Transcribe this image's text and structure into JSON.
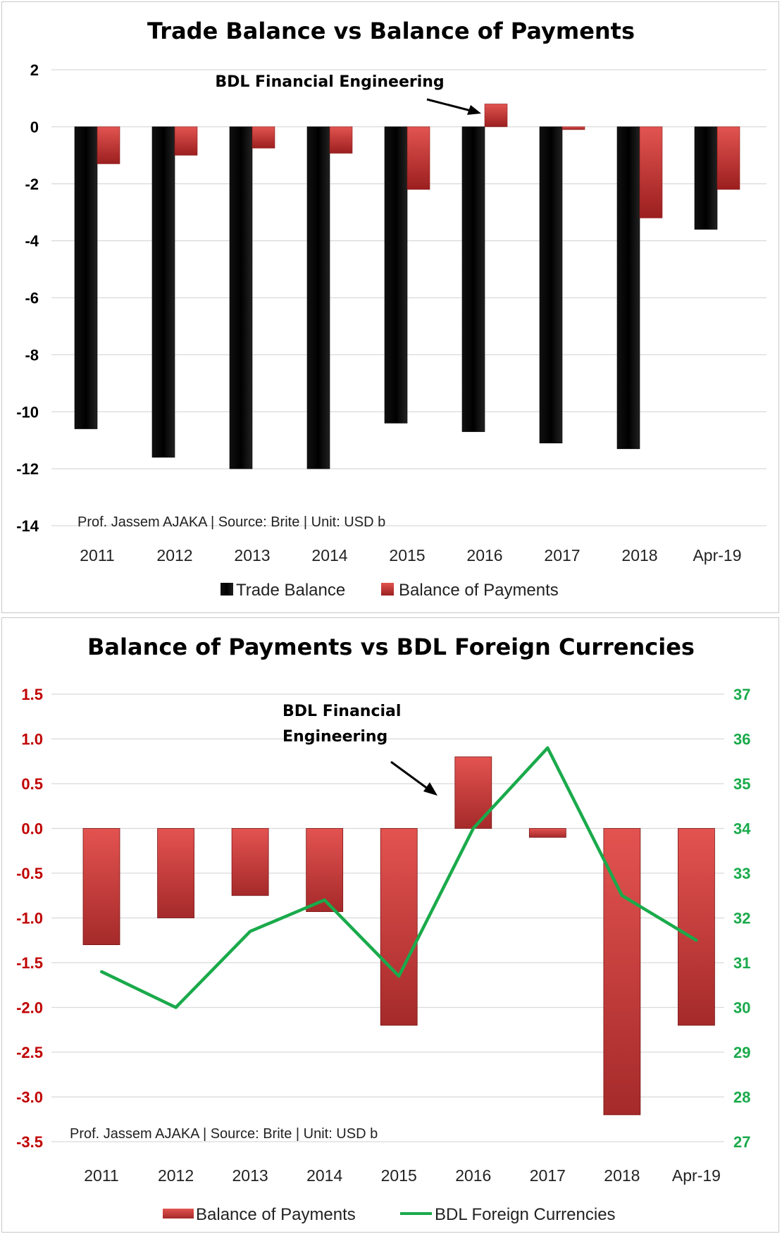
{
  "chart_data": [
    {
      "type": "bar",
      "title": "Trade Balance vs Balance of Payments",
      "categories": [
        "2011",
        "2012",
        "2013",
        "2014",
        "2015",
        "2016",
        "2017",
        "2018",
        "Apr-19"
      ],
      "series": [
        {
          "name": "Trade Balance",
          "color": "#000000",
          "values": [
            -10.6,
            -11.6,
            -12.0,
            -12.0,
            -10.4,
            -10.7,
            -11.1,
            -11.3,
            -3.6
          ]
        },
        {
          "name": "Balance of Payments",
          "color": "#c0392b",
          "values": [
            -1.3,
            -1.0,
            -0.75,
            -0.93,
            -2.2,
            0.8,
            -0.1,
            -3.2,
            -2.2
          ]
        }
      ],
      "ylim": [
        -14,
        2
      ],
      "yticks": [
        2,
        0,
        -2,
        -4,
        -6,
        -8,
        -10,
        -12,
        -14
      ],
      "grid": true,
      "legend_position": "bottom",
      "annotation": "BDL Financial Engineering",
      "footnote": "Prof. Jassem AJAKA | Source: Brite | Unit: USD b"
    },
    {
      "type": "bar",
      "title": "Balance of Payments vs BDL Foreign Currencies",
      "categories": [
        "2011",
        "2012",
        "2013",
        "2014",
        "2015",
        "2016",
        "2017",
        "2018",
        "Apr-19"
      ],
      "series": [
        {
          "name": "Balance of Payments",
          "type": "bar",
          "axis": "left",
          "color": "#c0392b",
          "values": [
            -1.3,
            -1.0,
            -0.75,
            -0.93,
            -2.2,
            0.8,
            -0.1,
            -3.2,
            -2.2
          ]
        },
        {
          "name": "BDL Foreign Currencies",
          "type": "line",
          "axis": "right",
          "color": "#1aaa4b",
          "values": [
            30.8,
            30.0,
            31.7,
            32.4,
            30.7,
            34.0,
            35.8,
            32.5,
            31.5
          ]
        }
      ],
      "ylim": [
        -3.5,
        1.5
      ],
      "yticks": [
        "1.5",
        "1.0",
        "0.5",
        "0.0",
        "-0.5",
        "-1.0",
        "-1.5",
        "-2.0",
        "-2.5",
        "-3.0",
        "-3.5"
      ],
      "y2lim": [
        27,
        37
      ],
      "y2ticks": [
        "37",
        "36",
        "35",
        "34",
        "33",
        "32",
        "31",
        "30",
        "29",
        "28",
        "27"
      ],
      "left_axis_color": "#c00000",
      "right_axis_color": "#1aaa4b",
      "grid": true,
      "legend_position": "bottom",
      "annotation_lines": [
        "BDL Financial",
        "Engineering"
      ],
      "footnote": "Prof. Jassem AJAKA | Source: Brite | Unit: USD b"
    }
  ]
}
